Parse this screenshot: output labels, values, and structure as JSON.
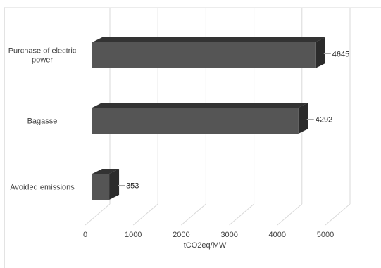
{
  "chart_data": {
    "type": "bar",
    "orientation": "horizontal",
    "style": "3d",
    "categories": [
      "Purchase of electric power",
      "Bagasse",
      "Avoided emissions"
    ],
    "category_lines": [
      [
        "Purchase of electric",
        "power"
      ],
      [
        "Bagasse"
      ],
      [
        "Avoided emissions"
      ]
    ],
    "values": [
      4645,
      4292,
      353
    ],
    "value_labels": [
      "4645",
      "4292",
      "353"
    ],
    "xlabel": "tCO2eq/MW",
    "ylabel": "",
    "title": "",
    "xlim": [
      0,
      5000
    ],
    "x_ticks": [
      "0",
      "1000",
      "2000",
      "3000",
      "4000",
      "5000"
    ],
    "grid": true,
    "legend": "none",
    "colors": {
      "bar_front": "#555555",
      "bar_top": "#333333",
      "bar_side": "#2b2b2b",
      "gridline": "#d9d9d9",
      "text": "#404040",
      "leader": "#a6a6a6"
    }
  }
}
